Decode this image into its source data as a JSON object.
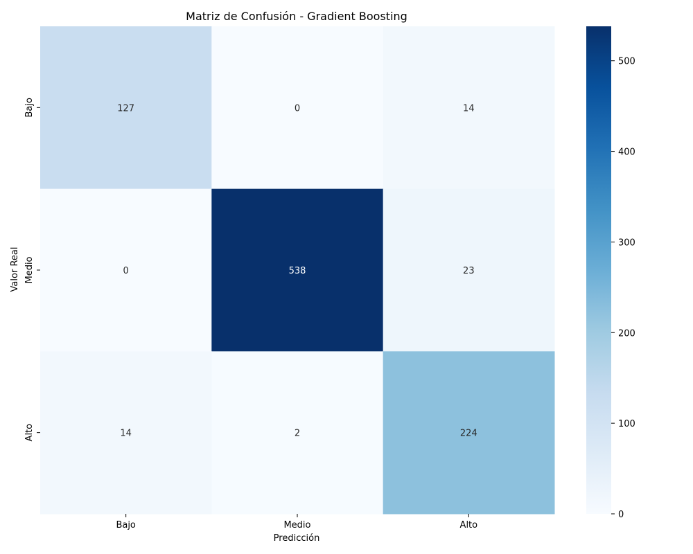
{
  "chart_data": {
    "type": "heatmap",
    "title": "Matriz de Confusión - Gradient Boosting",
    "xlabel": "Predicción",
    "ylabel": "Valor Real",
    "x_categories": [
      "Bajo",
      "Medio",
      "Alto"
    ],
    "y_categories": [
      "Bajo",
      "Medio",
      "Alto"
    ],
    "values": [
      [
        127,
        0,
        14
      ],
      [
        0,
        538,
        23
      ],
      [
        14,
        2,
        224
      ]
    ],
    "colormap": "Blues",
    "colorbar": {
      "min": 0,
      "max": 538,
      "ticks": [
        "0",
        "100",
        "200",
        "300",
        "400",
        "500"
      ]
    },
    "grid": false
  }
}
